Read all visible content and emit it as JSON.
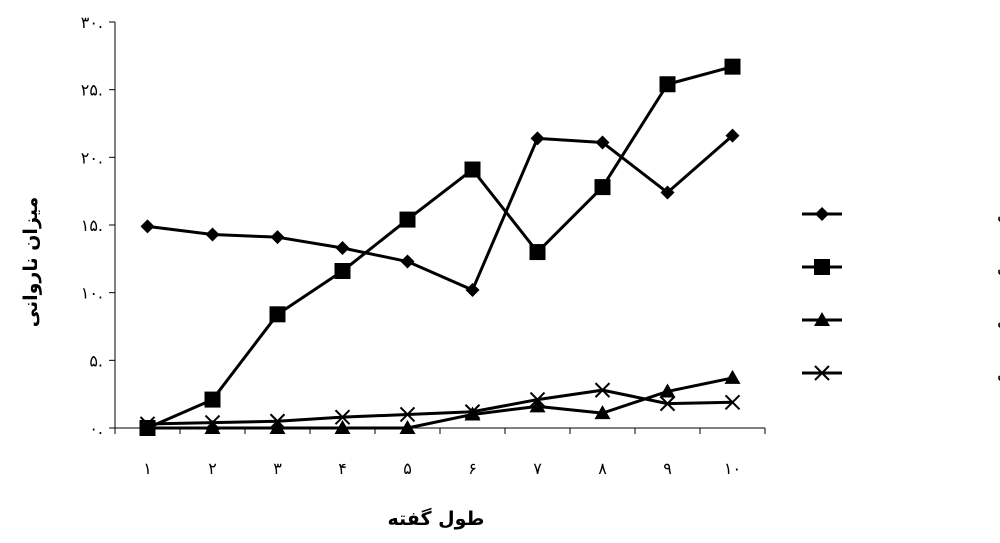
{
  "chart_data": {
    "type": "line",
    "xlabel": "طول گفته",
    "ylabel": "میزان ناروانی",
    "categories": [
      "۱",
      "۲",
      "۳",
      "۴",
      "۵",
      "۶",
      "۷",
      "۸",
      "۹",
      "۱۰"
    ],
    "yticks": [
      "۰.",
      "۵.",
      "۱۰.",
      "۱۵.",
      "۲۰.",
      "۲۵.",
      "۳۰."
    ],
    "ylim": [
      0,
      30
    ],
    "grid": false,
    "legend_position": "right",
    "series": [
      {
        "name": "ساده-لکنتی",
        "marker": "diamond",
        "values": [
          14.9,
          14.3,
          14.1,
          13.3,
          12.3,
          10.2,
          21.4,
          21.1,
          17.4,
          21.6
        ]
      },
      {
        "name": "پیچیده-لکنتی",
        "marker": "square",
        "values": [
          0,
          2.1,
          8.4,
          11.6,
          15.4,
          19.1,
          13.0,
          17.8,
          25.4,
          26.7
        ]
      },
      {
        "name": "ساده-غیرلکنتی",
        "marker": "triangle",
        "values": [
          0,
          0,
          0,
          0,
          0,
          1.0,
          1.6,
          1.1,
          2.7,
          3.7
        ]
      },
      {
        "name": "پیچیده-غیرلکنتی",
        "marker": "x",
        "values": [
          0.3,
          0.4,
          0.5,
          0.8,
          1.0,
          1.2,
          2.1,
          2.8,
          1.8,
          1.9
        ]
      }
    ]
  }
}
